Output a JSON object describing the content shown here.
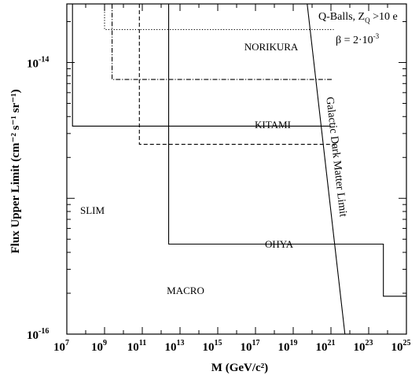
{
  "chart_data": {
    "type": "line",
    "xlabel": "M (GeV/c²)",
    "ylabel": "Flux Upper Limit (cm⁻² s⁻¹ sr⁻¹)",
    "xscale": "log",
    "yscale": "log",
    "xlim": [
      10000000.0,
      1e+25
    ],
    "ylim": [
      1e-16,
      2.7e-14
    ],
    "grid": false,
    "legend": "none",
    "x_ticks": [
      {
        "base": "10",
        "exp": "7"
      },
      {
        "base": "10",
        "exp": "9"
      },
      {
        "base": "10",
        "exp": "11"
      },
      {
        "base": "10",
        "exp": "13"
      },
      {
        "base": "10",
        "exp": "15"
      },
      {
        "base": "10",
        "exp": "17"
      },
      {
        "base": "10",
        "exp": "19"
      },
      {
        "base": "10",
        "exp": "21"
      },
      {
        "base": "10",
        "exp": "23"
      },
      {
        "base": "10",
        "exp": "25"
      }
    ],
    "y_ticks": [
      {
        "base": "10",
        "exp": "-14",
        "value": 1e-14
      },
      {
        "base": "10",
        "exp": "-16",
        "value": 1e-16
      }
    ],
    "annotation": {
      "line1": "Q-Balls,  Z",
      "line1_sub": "Q",
      "line1_rest": " >10 e",
      "line2": "β = 2·10",
      "line2_sup": "-3"
    },
    "series": [
      {
        "name": "SLIM",
        "style": "solid",
        "points": [
          [
            20000000.0,
            2.7e-14
          ],
          [
            20000000.0,
            3.4e-15
          ],
          [
            1e+21,
            3.4e-15
          ]
        ]
      },
      {
        "name": "NORIKURA",
        "style": "dotted",
        "points": [
          [
            1000000000.0,
            2.7e-14
          ],
          [
            1000000000.0,
            1.75e-14
          ],
          [
            1.4e+21,
            1.75e-14
          ]
        ]
      },
      {
        "name": "KITAMI",
        "style": "dashdot",
        "points": [
          [
            2500000000.0,
            2.7e-14
          ],
          [
            2500000000.0,
            7.5e-15
          ],
          [
            1.1e+21,
            7.5e-15
          ]
        ]
      },
      {
        "name": "OHYA",
        "style": "dashed",
        "points": [
          [
            70000000000.0,
            2.7e-14
          ],
          [
            70000000000.0,
            2.5e-15
          ],
          [
            2e+21,
            2.5e-15
          ]
        ]
      },
      {
        "name": "MACRO",
        "style": "solid",
        "points": [
          [
            2500000000000.0,
            2.7e-14
          ],
          [
            2500000000000.0,
            4.6e-16
          ],
          [
            6e+23,
            4.6e-16
          ],
          [
            6e+23,
            1.9e-16
          ],
          [
            1e+25,
            1.9e-16
          ]
        ]
      },
      {
        "name": "Galactic Dark Matter Limit",
        "style": "solid",
        "points": [
          [
            5.5e+19,
            2.7e-14
          ],
          [
            5.5e+21,
            1e-16
          ]
        ]
      }
    ]
  }
}
